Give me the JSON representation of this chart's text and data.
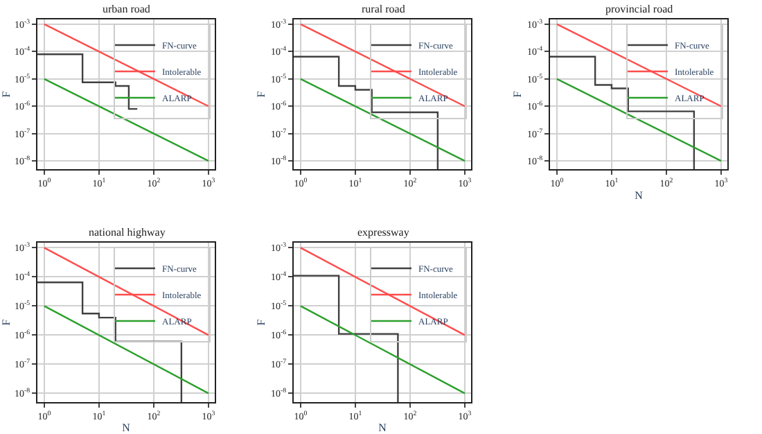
{
  "chart_data": [
    {
      "type": "line",
      "title": "urban road",
      "ylabel": "F",
      "log": "xy",
      "grid": true,
      "legend": "top right",
      "xlim": [
        0.75,
        1300
      ],
      "ylim": [
        5e-09,
        0.0015
      ],
      "xticks": [
        {
          "value": 1,
          "label": "10$^{0}$"
        },
        {
          "value": 10,
          "label": "10$^{1}$"
        },
        {
          "value": 100,
          "label": "10$^{2}$"
        },
        {
          "value": 1000,
          "label": "10$^{3}$"
        }
      ],
      "yticks": [
        {
          "value": 1e-08,
          "label": "10$^{-8}$"
        },
        {
          "value": 1e-07,
          "label": "10$^{-7}$"
        },
        {
          "value": 1e-06,
          "label": "10$^{-6}$"
        },
        {
          "value": 1e-05,
          "label": "10$^{-5}$"
        },
        {
          "value": 0.0001,
          "label": "10$^{-4}$"
        },
        {
          "value": 0.001,
          "label": "10$^{-3}$"
        }
      ],
      "series": [
        {
          "name": "FN-curve",
          "type": "step",
          "color": "#404040",
          "x": [
            0.75,
            5,
            20,
            35,
            50
          ],
          "values": [
            8e-05,
            7.5e-06,
            5.5e-06,
            8e-07,
            8e-07
          ]
        },
        {
          "name": "Intolerable",
          "color": "#ff4d4d",
          "x": [
            1,
            1000
          ],
          "values": [
            0.001,
            1e-06
          ]
        },
        {
          "name": "ALARP",
          "color": "#2ca02c",
          "x": [
            1,
            1000
          ],
          "values": [
            1e-05,
            1e-08
          ]
        }
      ]
    },
    {
      "type": "line",
      "title": "rural road",
      "ylabel": "F",
      "log": "xy",
      "grid": true,
      "legend": "top right",
      "xlim": [
        0.75,
        1300
      ],
      "ylim": [
        5e-09,
        0.0015
      ],
      "xticks": [
        {
          "value": 1,
          "label": "10$^{0}$"
        },
        {
          "value": 10,
          "label": "10$^{1}$"
        },
        {
          "value": 100,
          "label": "10$^{2}$"
        },
        {
          "value": 1000,
          "label": "10$^{3}$"
        }
      ],
      "yticks": [
        {
          "value": 1e-08,
          "label": "10$^{-8}$"
        },
        {
          "value": 1e-07,
          "label": "10$^{-7}$"
        },
        {
          "value": 1e-06,
          "label": "10$^{-6}$"
        },
        {
          "value": 1e-05,
          "label": "10$^{-5}$"
        },
        {
          "value": 0.0001,
          "label": "10$^{-4}$"
        },
        {
          "value": 0.001,
          "label": "10$^{-3}$"
        }
      ],
      "series": [
        {
          "name": "FN-curve",
          "type": "step",
          "color": "#404040",
          "x": [
            0.75,
            5,
            10,
            20,
            320
          ],
          "values": [
            6.5e-05,
            5.5e-06,
            4e-06,
            6e-07,
            5e-09
          ]
        },
        {
          "name": "Intolerable",
          "color": "#ff4d4d",
          "x": [
            1,
            1000
          ],
          "values": [
            0.001,
            1e-06
          ]
        },
        {
          "name": "ALARP",
          "color": "#2ca02c",
          "x": [
            1,
            1000
          ],
          "values": [
            1e-05,
            1e-08
          ]
        }
      ]
    },
    {
      "type": "line",
      "title": "provincial road",
      "xlabel": "N",
      "ylabel": "F",
      "log": "xy",
      "grid": true,
      "legend": "top right",
      "xlim": [
        0.75,
        1300
      ],
      "ylim": [
        5e-09,
        0.0015
      ],
      "xticks": [
        {
          "value": 1,
          "label": "10$^{0}$"
        },
        {
          "value": 10,
          "label": "10$^{1}$"
        },
        {
          "value": 100,
          "label": "10$^{2}$"
        },
        {
          "value": 1000,
          "label": "10$^{3}$"
        }
      ],
      "yticks": [
        {
          "value": 1e-08,
          "label": "10$^{-8}$"
        },
        {
          "value": 1e-07,
          "label": "10$^{-7}$"
        },
        {
          "value": 1e-06,
          "label": "10$^{-6}$"
        },
        {
          "value": 1e-05,
          "label": "10$^{-5}$"
        },
        {
          "value": 0.0001,
          "label": "10$^{-4}$"
        },
        {
          "value": 0.001,
          "label": "10$^{-3}$"
        }
      ],
      "series": [
        {
          "name": "FN-curve",
          "type": "step",
          "color": "#404040",
          "x": [
            0.75,
            5,
            10,
            20,
            320
          ],
          "values": [
            6.5e-05,
            6e-06,
            4.5e-06,
            6.5e-07,
            5e-09
          ]
        },
        {
          "name": "Intolerable",
          "color": "#ff4d4d",
          "x": [
            1,
            1000
          ],
          "values": [
            0.001,
            1e-06
          ]
        },
        {
          "name": "ALARP",
          "color": "#2ca02c",
          "x": [
            1,
            1000
          ],
          "values": [
            1e-05,
            1e-08
          ]
        }
      ]
    },
    {
      "type": "line",
      "title": "national highway",
      "xlabel": "N",
      "ylabel": "F",
      "log": "xy",
      "grid": true,
      "legend": "top right",
      "xlim": [
        0.75,
        1300
      ],
      "ylim": [
        5e-09,
        0.0015
      ],
      "xticks": [
        {
          "value": 1,
          "label": "10$^{0}$"
        },
        {
          "value": 10,
          "label": "10$^{1}$"
        },
        {
          "value": 100,
          "label": "10$^{2}$"
        },
        {
          "value": 1000,
          "label": "10$^{3}$"
        }
      ],
      "yticks": [
        {
          "value": 1e-08,
          "label": "10$^{-8}$"
        },
        {
          "value": 1e-07,
          "label": "10$^{-7}$"
        },
        {
          "value": 1e-06,
          "label": "10$^{-6}$"
        },
        {
          "value": 1e-05,
          "label": "10$^{-5}$"
        },
        {
          "value": 0.0001,
          "label": "10$^{-4}$"
        },
        {
          "value": 0.001,
          "label": "10$^{-3}$"
        }
      ],
      "series": [
        {
          "name": "FN-curve",
          "type": "step",
          "color": "#404040",
          "x": [
            0.75,
            5,
            10,
            20,
            320
          ],
          "values": [
            6.5e-05,
            5.5e-06,
            4e-06,
            6e-07,
            5e-09
          ]
        },
        {
          "name": "Intolerable",
          "color": "#ff4d4d",
          "x": [
            1,
            1000
          ],
          "values": [
            0.001,
            1e-06
          ]
        },
        {
          "name": "ALARP",
          "color": "#2ca02c",
          "x": [
            1,
            1000
          ],
          "values": [
            1e-05,
            1e-08
          ]
        }
      ]
    },
    {
      "type": "line",
      "title": "expressway",
      "xlabel": "N",
      "ylabel": "F",
      "log": "xy",
      "grid": true,
      "legend": "top right",
      "xlim": [
        0.75,
        1300
      ],
      "ylim": [
        5e-09,
        0.0015
      ],
      "xticks": [
        {
          "value": 1,
          "label": "10$^{0}$"
        },
        {
          "value": 10,
          "label": "10$^{1}$"
        },
        {
          "value": 100,
          "label": "10$^{2}$"
        },
        {
          "value": 1000,
          "label": "10$^{3}$"
        }
      ],
      "yticks": [
        {
          "value": 1e-08,
          "label": "10$^{-8}$"
        },
        {
          "value": 1e-07,
          "label": "10$^{-7}$"
        },
        {
          "value": 1e-06,
          "label": "10$^{-6}$"
        },
        {
          "value": 1e-05,
          "label": "10$^{-5}$"
        },
        {
          "value": 0.0001,
          "label": "10$^{-4}$"
        },
        {
          "value": 0.001,
          "label": "10$^{-3}$"
        }
      ],
      "series": [
        {
          "name": "FN-curve",
          "type": "step",
          "color": "#404040",
          "x": [
            0.75,
            5,
            60
          ],
          "values": [
            0.00011,
            1.1e-06,
            5e-09
          ]
        },
        {
          "name": "Intolerable",
          "color": "#ff4d4d",
          "x": [
            1,
            1000
          ],
          "values": [
            0.001,
            1e-06
          ]
        },
        {
          "name": "ALARP",
          "color": "#2ca02c",
          "x": [
            1,
            1000
          ],
          "values": [
            1e-05,
            1e-08
          ]
        }
      ]
    }
  ]
}
